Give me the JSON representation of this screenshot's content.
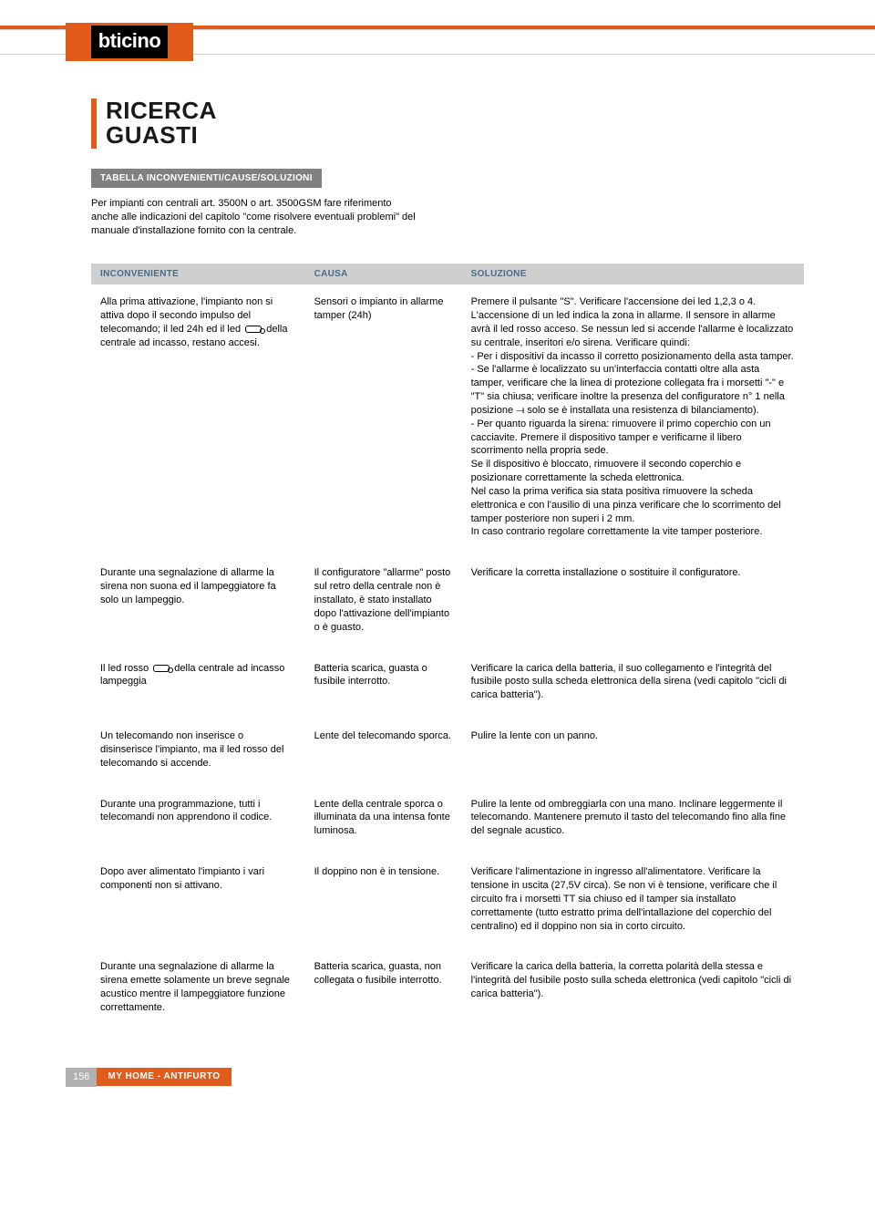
{
  "brand": {
    "logo_text": "bticino"
  },
  "title_line1": "RICERCA",
  "title_line2": "GUASTI",
  "subtitle_bar": "TABELLA INCONVENIENTI/CAUSE/SOLUZIONI",
  "intro": "Per impianti con centrali art. 3500N o art. 3500GSM fare riferimento anche alle indicazioni del capitolo \"come risolvere eventuali problemi\" del manuale d'installazione fornito con la centrale.",
  "columns": {
    "c1": "INCONVENIENTE",
    "c2": "CAUSA",
    "c3": "SOLUZIONE"
  },
  "rows": [
    {
      "inconveniente_a": "Alla prima attivazione, l'impianto non si attiva dopo il secondo impulso del telecomando; il led 24h ed il led ",
      "inconveniente_b": " della centrale ad incasso, restano accesi.",
      "causa": "Sensori o impianto in allarme tamper (24h)",
      "soluzione": "Premere il pulsante \"S\". Verificare l'accensione dei led 1,2,3 o 4. L'accensione di un led indica la zona in allarme. Il sensore in allarme avrà il led rosso acceso. Se nessun led si accende l'allarme è localizzato su centrale, inseritori e/o sirena. Verificare quindi:\n- Per i dispositivi da incasso il corretto posizionamento della asta tamper.\n- Se l'allarme è localizzato su un'interfaccia contatti oltre alla asta tamper, verificare che la linea di protezione collegata fra i morsetti \"-\" e \"T\" sia chiusa; verificare inoltre la presenza del configuratore n° 1 nella posizione ⟞ solo se è installata una resistenza di bilanciamento).\n- Per quanto riguarda la sirena: rimuovere il primo coperchio con un cacciavite. Premere il dispositivo tamper e verificarne il libero scorrimento nella propria sede.\nSe il dispositivo è bloccato, rimuovere il secondo coperchio e posizionare correttamente la scheda elettronica.\nNel caso la prima verifica sia stata positiva rimuovere la scheda elettronica e con l'ausilio di una pinza verificare che lo scorrimento del tamper posteriore non superi i 2 mm.\nIn caso contrario regolare correttamente la vite tamper posteriore."
    },
    {
      "inconveniente": "Durante una segnalazione di allarme la sirena non suona ed il lampeggiatore fa solo un lampeggio.",
      "causa": "Il configuratore \"allarme\" posto sul retro della centrale non è installato, è stato installato dopo l'attivazione dell'impianto o è guasto.",
      "soluzione": "Verificare la corretta installazione o sostituire il configuratore."
    },
    {
      "inconveniente_a": "Il led rosso ",
      "inconveniente_b": " della centrale ad incasso lampeggia",
      "causa": "Batteria scarica, guasta o fusibile interrotto.",
      "soluzione": "Verificare la carica della batteria, il suo collegamento e l'integrità del fusibile posto sulla scheda elettronica della sirena (vedi capitolo \"cicli di carica batteria\")."
    },
    {
      "inconveniente": "Un telecomando non inserisce o disinserisce l'impianto, ma il led rosso del telecomando si accende.",
      "causa": "Lente del telecomando sporca.",
      "soluzione": "Pulire la lente con un panno."
    },
    {
      "inconveniente": "Durante una programmazione, tutti i telecomandi non apprendono il codice.",
      "causa": "Lente della centrale sporca o illuminata da una intensa fonte luminosa.",
      "soluzione": "Pulire la lente od ombreggiarla con una mano. Inclinare leggermente il telecomando. Mantenere premuto il tasto del telecomando fino alla fine del segnale acustico."
    },
    {
      "inconveniente": "Dopo aver alimentato l'impianto i vari componenti non si attivano.",
      "causa": "Il doppino non è in tensione.",
      "soluzione": "Verificare l'alimentazione in ingresso all'alimentatore. Verificare la tensione in uscita (27,5V circa). Se non vi è tensione, verificare che il circuito fra i morsetti TT sia chiuso ed il tamper sia installato correttamente (tutto estratto prima dell'intallazione del coperchio del centralino) ed il doppino non sia in corto circuito."
    },
    {
      "inconveniente": "Durante una segnalazione di allarme la sirena emette solamente un breve segnale acustico mentre il lampeggiatore funzione correttamente.",
      "causa": "Batteria scarica, guasta, non collegata o fusibile interrotto.",
      "soluzione": "Verificare la carica della batteria, la corretta polarità della stessa e l'integrità del fusibile posto sulla scheda elettronica (vedi capitolo \"cicli di carica batteria\")."
    }
  ],
  "footer": {
    "page": "156",
    "section": "MY HOME - ANTIFURTO"
  },
  "colors": {
    "accent": "#e15c1a",
    "header_bg": "#cfcfcf",
    "header_text": "#4a6a8a",
    "subtitle_bg": "#808080",
    "pagenum_bg": "#b0b0b0"
  }
}
